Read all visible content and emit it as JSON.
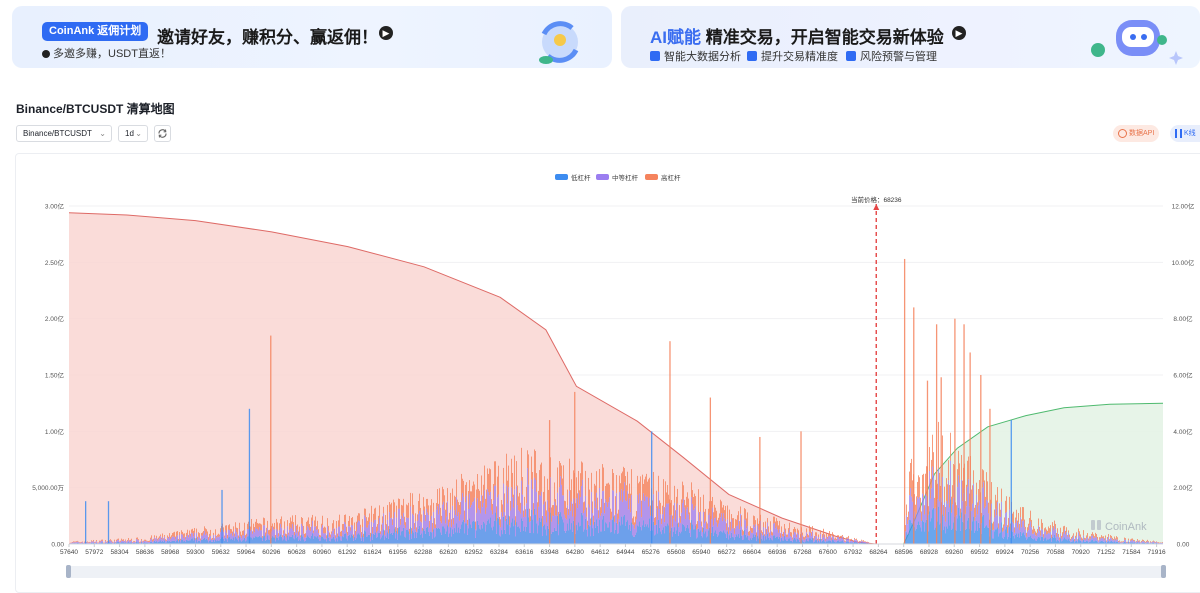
{
  "banners": {
    "left": {
      "brand": "CoinAnk 返佣计划",
      "title": "邀请好友，赚积分、赢返佣！",
      "subtitle": "多邀多赚，USDT直返！"
    },
    "right": {
      "title_ai": "AI赋能",
      "title_rest": " 精准交易，开启智能交易新体验",
      "features": [
        "智能大数据分析",
        "提升交易精准度",
        "风险预警与管理"
      ]
    }
  },
  "page_title": "Binance/BTCUSDT 清算地图",
  "controls": {
    "pair_select": "Binance/BTCUSDT",
    "interval_select": "1d",
    "api_button": "数据API",
    "kline_button": "K线"
  },
  "colors": {
    "low": "#3d8cf0",
    "mid": "#9b7ef0",
    "high": "#f5835d",
    "short_cum_fill": "#f9d6d2",
    "short_cum_line": "#de6a66",
    "long_cum_fill": "#e4f3e6",
    "long_cum_line": "#4fba6f",
    "price_line": "#e54545"
  },
  "chart_data": {
    "type": "bar",
    "legend": [
      "低杠杆",
      "中等杠杆",
      "高杠杆"
    ],
    "legend_position": "top-center",
    "current_price_label": "当前价格：68236",
    "current_price": 68236,
    "watermark": "CoinAnk",
    "x_range": [
      57640,
      72000
    ],
    "x_ticks": [
      "57640",
      "57972",
      "58304",
      "58636",
      "58968",
      "59300",
      "59632",
      "59964",
      "60296",
      "60628",
      "60960",
      "61292",
      "61624",
      "61956",
      "62288",
      "62620",
      "62952",
      "63284",
      "63616",
      "63948",
      "64280",
      "64612",
      "64944",
      "65276",
      "65608",
      "65940",
      "66272",
      "66604",
      "66936",
      "67268",
      "67600",
      "67932",
      "68264",
      "68596",
      "68928",
      "69260",
      "69592",
      "69924",
      "70256",
      "70588",
      "70920",
      "71252",
      "71584",
      "71916"
    ],
    "y_left": {
      "ticks": [
        "0.00",
        "5,000.00万",
        "1.00亿",
        "1.50亿",
        "2.00亿",
        "2.50亿",
        "3.00亿"
      ],
      "max": 300000000
    },
    "y_right": {
      "ticks": [
        "0.00",
        "2.00亿",
        "4.00亿",
        "6.00亿",
        "8.00亿",
        "10.00亿",
        "12.00亿"
      ],
      "max": 1200000000
    },
    "bar_envelope": [
      [
        57640,
        2000000
      ],
      [
        58600,
        5000000
      ],
      [
        59300,
        12000000
      ],
      [
        60300,
        20000000
      ],
      [
        61300,
        22000000
      ],
      [
        62300,
        40000000
      ],
      [
        63000,
        55000000
      ],
      [
        63600,
        70000000
      ],
      [
        64300,
        60000000
      ],
      [
        65000,
        55000000
      ],
      [
        65600,
        50000000
      ],
      [
        66300,
        30000000
      ],
      [
        67000,
        18000000
      ],
      [
        67600,
        10000000
      ],
      [
        68000,
        4000000
      ],
      [
        68200,
        0
      ],
      [
        68596,
        0
      ],
      [
        68650,
        60000000
      ],
      [
        69000,
        90000000
      ],
      [
        69300,
        80000000
      ],
      [
        69700,
        50000000
      ],
      [
        70200,
        25000000
      ],
      [
        70800,
        12000000
      ],
      [
        71600,
        4000000
      ],
      [
        72000,
        2000000
      ]
    ],
    "spikes": [
      [
        57850,
        38000000,
        "low"
      ],
      [
        58150,
        38000000,
        "low"
      ],
      [
        59640,
        48000000,
        "low"
      ],
      [
        60000,
        120000000,
        "low"
      ],
      [
        60280,
        185000000,
        "high"
      ],
      [
        63940,
        110000000,
        "high"
      ],
      [
        64270,
        135000000,
        "high"
      ],
      [
        65280,
        100000000,
        "low"
      ],
      [
        65520,
        180000000,
        "high"
      ],
      [
        66050,
        130000000,
        "high"
      ],
      [
        66700,
        95000000,
        "high"
      ],
      [
        67240,
        100000000,
        "high"
      ],
      [
        68600,
        253000000,
        "high"
      ],
      [
        68720,
        210000000,
        "high"
      ],
      [
        68900,
        145000000,
        "high"
      ],
      [
        69020,
        195000000,
        "high"
      ],
      [
        69080,
        148000000,
        "high"
      ],
      [
        69260,
        200000000,
        "high"
      ],
      [
        69380,
        195000000,
        "high"
      ],
      [
        69460,
        170000000,
        "high"
      ],
      [
        69600,
        150000000,
        "high"
      ],
      [
        69720,
        120000000,
        "high"
      ],
      [
        70000,
        110000000,
        "low"
      ]
    ],
    "short_cumulative": [
      [
        57640,
        1176000000
      ],
      [
        58400,
        1168000000
      ],
      [
        59300,
        1148000000
      ],
      [
        60300,
        1108000000
      ],
      [
        61300,
        1056000000
      ],
      [
        62300,
        984000000
      ],
      [
        63300,
        876000000
      ],
      [
        63900,
        760000000
      ],
      [
        64300,
        560000000
      ],
      [
        65100,
        436000000
      ],
      [
        65700,
        308000000
      ],
      [
        66300,
        176000000
      ],
      [
        67000,
        92000000
      ],
      [
        67700,
        28000000
      ],
      [
        68000,
        6000000
      ],
      [
        68236,
        0
      ]
    ],
    "long_cumulative": [
      [
        68596,
        0
      ],
      [
        68700,
        60000000
      ],
      [
        69000,
        248000000
      ],
      [
        69300,
        340000000
      ],
      [
        69700,
        416000000
      ],
      [
        70200,
        456000000
      ],
      [
        70700,
        484000000
      ],
      [
        71300,
        496000000
      ],
      [
        72000,
        500000000
      ]
    ]
  }
}
